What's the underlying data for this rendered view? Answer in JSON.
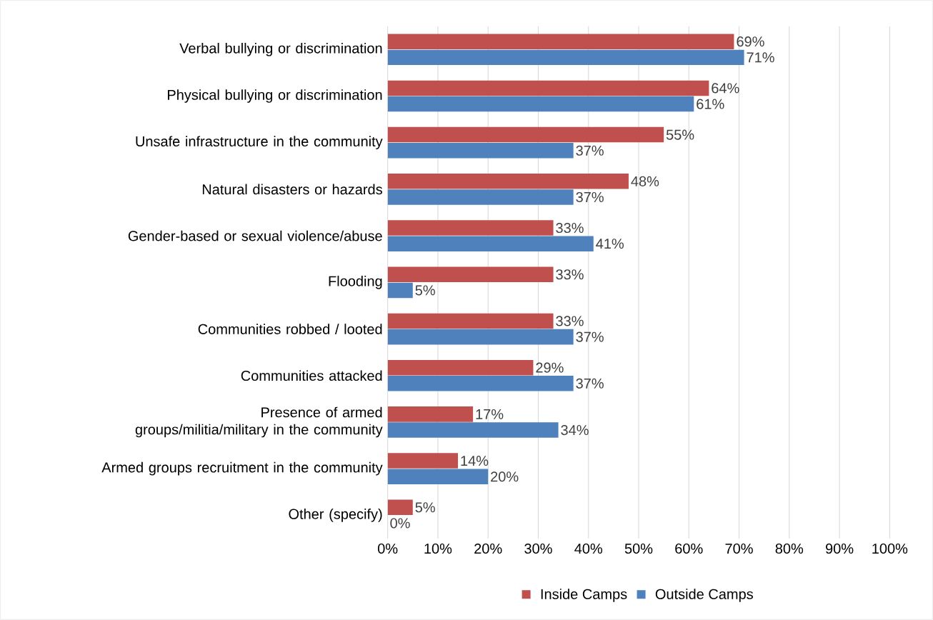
{
  "chart_data": {
    "type": "bar",
    "orientation": "horizontal",
    "categories": [
      "Verbal bullying or discrimination",
      "Physical bullying or discrimination",
      "Unsafe infrastructure in the community",
      "Natural disasters or hazards",
      "Gender-based or sexual violence/abuse",
      "Flooding",
      "Communities robbed / looted",
      "Communities attacked",
      "Presence of armed groups/militia/military in the community",
      "Armed groups recruitment in the community",
      "Other (specify)"
    ],
    "series": [
      {
        "name": "Inside Camps",
        "color": "#c0504d",
        "values": [
          69,
          64,
          55,
          48,
          33,
          33,
          33,
          29,
          17,
          14,
          5
        ],
        "value_labels": [
          "69%",
          "64%",
          "55%",
          "48%",
          "33%",
          "33%",
          "33%",
          "29%",
          "17%",
          "14%",
          "5%"
        ]
      },
      {
        "name": "Outside Camps",
        "color": "#4f81bd",
        "values": [
          71,
          61,
          37,
          37,
          41,
          5,
          37,
          37,
          34,
          20,
          0
        ],
        "value_labels": [
          "71%",
          "61%",
          "37%",
          "37%",
          "41%",
          "5%",
          "37%",
          "37%",
          "34%",
          "20%",
          "0%"
        ]
      }
    ],
    "xlim": [
      0,
      100
    ],
    "xticks": [
      {
        "value": 0,
        "label": "0%"
      },
      {
        "value": 10,
        "label": "10%"
      },
      {
        "value": 20,
        "label": "20%"
      },
      {
        "value": 30,
        "label": "30%"
      },
      {
        "value": 40,
        "label": "40%"
      },
      {
        "value": 50,
        "label": "50%"
      },
      {
        "value": 60,
        "label": "60%"
      },
      {
        "value": 70,
        "label": "70%"
      },
      {
        "value": 80,
        "label": "80%"
      },
      {
        "value": 90,
        "label": "90%"
      },
      {
        "value": 100,
        "label": "100%"
      }
    ],
    "grid": "x",
    "legend": "bottom"
  }
}
